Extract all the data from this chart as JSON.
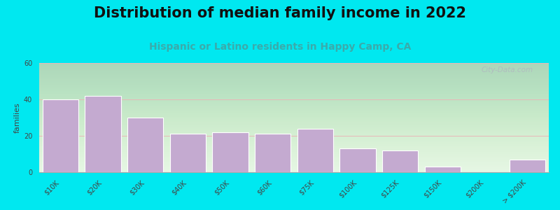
{
  "title": "Distribution of median family income in 2022",
  "subtitle": "Hispanic or Latino residents in Happy Camp, CA",
  "categories": [
    "$10K",
    "$20K",
    "$30K",
    "$40K",
    "$50K",
    "$60K",
    "$75K",
    "$100K",
    "$125K",
    "$150K",
    "$200K",
    "> $200K"
  ],
  "values": [
    40,
    42,
    30,
    21,
    22,
    21,
    24,
    13,
    12,
    3,
    0,
    7
  ],
  "bar_color": "#c4aad0",
  "bar_edgecolor": "#ffffff",
  "ylabel": "families",
  "ylim": [
    0,
    60
  ],
  "yticks": [
    0,
    20,
    40,
    60
  ],
  "background_outer": "#00e8f0",
  "background_top": "#d8f0d8",
  "background_bottom": "#f8fff8",
  "grid_color": "#e8b8b8",
  "title_fontsize": 15,
  "subtitle_fontsize": 10,
  "subtitle_color": "#3aabab",
  "ylabel_fontsize": 8,
  "tick_fontsize": 7,
  "watermark": "City-Data.com"
}
